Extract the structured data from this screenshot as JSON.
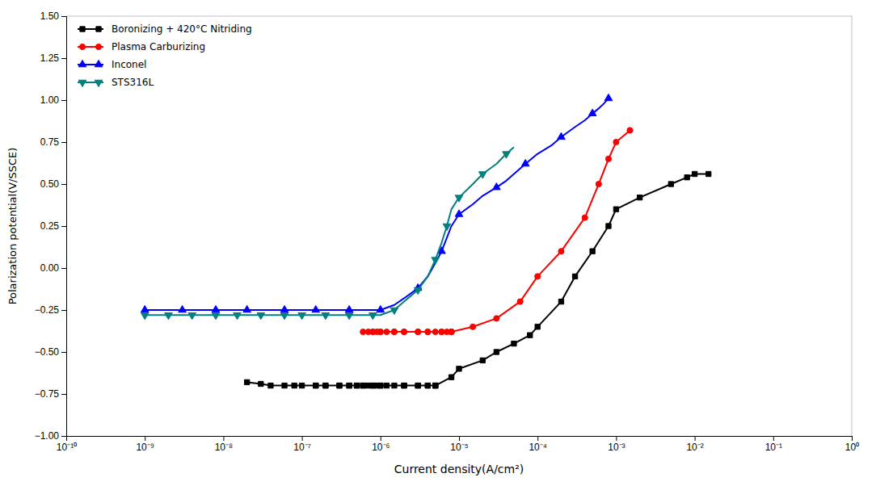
{
  "chart_data": {
    "type": "line",
    "xlabel": "Current density(A/cm²)",
    "ylabel": "Polarization potential(V/SSCE)",
    "log": "x",
    "grid": false,
    "legend": "upper-left",
    "xlim": [
      1e-10,
      1
    ],
    "xticks": [
      {
        "value": 1e-10,
        "label": "10⁻¹⁰"
      },
      {
        "value": 1e-09,
        "label": "10⁻⁹"
      },
      {
        "value": 1e-08,
        "label": "10⁻⁸"
      },
      {
        "value": 1e-07,
        "label": "10⁻⁷"
      },
      {
        "value": 1e-06,
        "label": "10⁻⁶"
      },
      {
        "value": 1e-05,
        "label": "10⁻⁵"
      },
      {
        "value": 0.0001,
        "label": "10⁻⁴"
      },
      {
        "value": 0.001,
        "label": "10⁻³"
      },
      {
        "value": 0.01,
        "label": "10⁻²"
      },
      {
        "value": 0.1,
        "label": "10⁻¹"
      },
      {
        "value": 1,
        "label": "10⁰"
      }
    ],
    "ylim": [
      -1.0,
      1.5
    ],
    "yticks": [
      {
        "value": -1.0,
        "label": "−1.00"
      },
      {
        "value": -0.75,
        "label": "−0.75"
      },
      {
        "value": -0.5,
        "label": "−0.50"
      },
      {
        "value": -0.25,
        "label": "−0.25"
      },
      {
        "value": 0.0,
        "label": "0.00"
      },
      0.25,
      {
        "value": 0.5,
        "label": "0.50"
      },
      0.75,
      {
        "value": 1.0,
        "label": "1.00"
      },
      1.25,
      {
        "value": 1.5,
        "label": "1.50"
      }
    ],
    "series": [
      {
        "name": "Boronizing + 420°C Nitriding",
        "color": "#000000",
        "marker": "square",
        "x": [
          2e-08,
          3e-08,
          4e-08,
          6e-08,
          8e-08,
          1e-07,
          1.5e-07,
          2e-07,
          3e-07,
          4e-07,
          5e-07,
          6e-07,
          7e-07,
          8e-07,
          9e-07,
          1e-06,
          1.2e-06,
          1.5e-06,
          2e-06,
          3e-06,
          4e-06,
          5e-06,
          null,
          5e-06,
          4e-06,
          3e-06,
          2e-06,
          1e-06,
          8e-07,
          6e-07,
          5e-07,
          4e-07,
          3e-07,
          2e-07,
          1.5e-07,
          null,
          5e-06,
          8e-06,
          1e-05,
          2e-05,
          3e-05,
          5e-05,
          8e-05,
          0.0001,
          0.0002,
          0.0003,
          0.0005,
          0.0008,
          0.001,
          0.002,
          0.005,
          0.008,
          0.01,
          0.015
        ],
        "values": [
          -0.68,
          -0.69,
          -0.7,
          -0.7,
          -0.7,
          -0.7,
          -0.7,
          -0.7,
          -0.7,
          -0.7,
          -0.7,
          -0.7,
          -0.7,
          -0.7,
          -0.7,
          -0.7,
          -0.7,
          -0.7,
          -0.7,
          -0.7,
          -0.7,
          -0.7,
          null,
          -0.7,
          -0.7,
          -0.7,
          -0.7,
          -0.7,
          -0.7,
          -0.7,
          -0.7,
          -0.7,
          -0.7,
          -0.7,
          -0.7,
          null,
          -0.7,
          -0.65,
          -0.6,
          -0.55,
          -0.5,
          -0.45,
          -0.4,
          -0.35,
          -0.2,
          -0.05,
          0.1,
          0.25,
          0.35,
          0.42,
          0.5,
          0.54,
          0.56,
          0.56
        ]
      },
      {
        "name": "Plasma Carburizing",
        "color": "#ff0000",
        "marker": "circle",
        "x": [
          6e-07,
          7e-07,
          8e-07,
          9e-07,
          1e-06,
          1.2e-06,
          1.5e-06,
          2e-06,
          3e-06,
          4e-06,
          5e-06,
          6e-06,
          7e-06,
          8e-06,
          null,
          8e-06,
          6e-06,
          4e-06,
          3e-06,
          2e-06,
          1.5e-06,
          1e-06,
          8e-07,
          null,
          8e-06,
          1.5e-05,
          3e-05,
          6e-05,
          0.0001,
          0.0002,
          0.0004,
          0.0006,
          0.0008,
          0.001,
          0.0015
        ],
        "values": [
          -0.38,
          -0.38,
          -0.38,
          -0.38,
          -0.38,
          -0.38,
          -0.38,
          -0.38,
          -0.38,
          -0.38,
          -0.38,
          -0.38,
          -0.38,
          -0.38,
          null,
          -0.38,
          -0.38,
          -0.38,
          -0.38,
          -0.38,
          -0.38,
          -0.38,
          -0.38,
          null,
          -0.38,
          -0.35,
          -0.3,
          -0.2,
          -0.05,
          0.1,
          0.3,
          0.5,
          0.65,
          0.75,
          0.82
        ]
      },
      {
        "name": "Inconel",
        "color": "#0000ff",
        "marker": "triangle-up",
        "x": [
          1e-09,
          1.5e-09,
          2e-09,
          3e-09,
          4e-09,
          6e-09,
          8e-09,
          1e-08,
          1.5e-08,
          2e-08,
          3e-08,
          4e-08,
          6e-08,
          8e-08,
          1e-07,
          1.5e-07,
          2e-07,
          3e-07,
          4e-07,
          6e-07,
          8e-07,
          1e-06,
          1.5e-06,
          2e-06,
          3e-06,
          4e-06,
          5e-06,
          6e-06,
          7e-06,
          8e-06,
          1e-05,
          1.5e-05,
          2e-05,
          3e-05,
          4e-05,
          5e-05,
          7e-05,
          0.0001,
          0.00015,
          0.0002,
          0.0003,
          0.0004,
          0.0005,
          0.0006,
          0.0007,
          0.0008
        ],
        "values": [
          -0.25,
          -0.25,
          -0.25,
          -0.25,
          -0.25,
          -0.25,
          -0.25,
          -0.25,
          -0.25,
          -0.25,
          -0.25,
          -0.25,
          -0.25,
          -0.25,
          -0.25,
          -0.25,
          -0.25,
          -0.25,
          -0.25,
          -0.25,
          -0.25,
          -0.25,
          -0.22,
          -0.18,
          -0.12,
          -0.05,
          0.03,
          0.1,
          0.18,
          0.25,
          0.32,
          0.38,
          0.43,
          0.48,
          0.52,
          0.56,
          0.62,
          0.68,
          0.73,
          0.78,
          0.84,
          0.88,
          0.92,
          0.95,
          0.98,
          1.01
        ]
      },
      {
        "name": "STS316L",
        "color": "#008080",
        "marker": "triangle-down",
        "x": [
          1e-09,
          1.5e-09,
          2e-09,
          3e-09,
          4e-09,
          6e-09,
          8e-09,
          1e-08,
          1.5e-08,
          2e-08,
          3e-08,
          4e-08,
          6e-08,
          8e-08,
          1e-07,
          1.5e-07,
          2e-07,
          3e-07,
          4e-07,
          6e-07,
          8e-07,
          1e-06,
          1.5e-06,
          2e-06,
          3e-06,
          4e-06,
          5e-06,
          6e-06,
          7e-06,
          8e-06,
          1e-05,
          1.5e-05,
          2e-05,
          3e-05,
          4e-05,
          5e-05
        ],
        "values": [
          -0.28,
          -0.28,
          -0.28,
          -0.28,
          -0.28,
          -0.28,
          -0.28,
          -0.28,
          -0.28,
          -0.28,
          -0.28,
          -0.28,
          -0.28,
          -0.28,
          -0.28,
          -0.28,
          -0.28,
          -0.28,
          -0.28,
          -0.28,
          -0.28,
          -0.28,
          -0.25,
          -0.2,
          -0.13,
          -0.05,
          0.05,
          0.15,
          0.25,
          0.35,
          0.42,
          0.5,
          0.56,
          0.62,
          0.68,
          0.72
        ]
      }
    ]
  }
}
